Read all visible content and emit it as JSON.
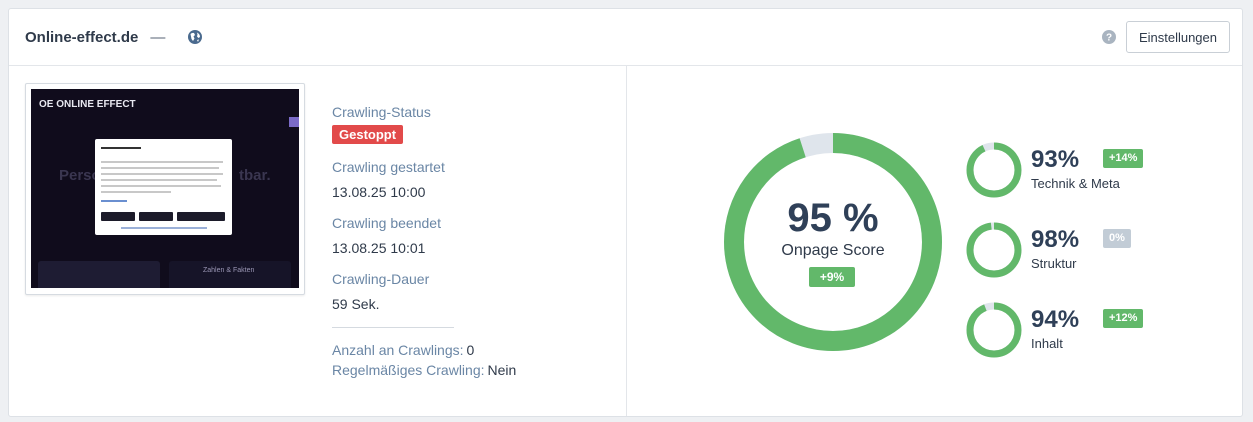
{
  "header": {
    "site_title": "Online-effect.de",
    "dash": "—",
    "settings_label": "Einstellungen"
  },
  "thumbnail": {
    "logo_text": "OE ONLINE EFFECT",
    "hero_left": "Perso",
    "hero_right": "tbar.",
    "panel_text": "Zahlen & Fakten"
  },
  "crawl": {
    "status_label": "Crawling-Status",
    "status_value": "Gestoppt",
    "started_label": "Crawling gestartet",
    "started_value": "13.08.25 10:00",
    "ended_label": "Crawling beendet",
    "ended_value": "13.08.25 10:01",
    "duration_label": "Crawling-Dauer",
    "duration_value": "59 Sek.",
    "count_label": "Anzahl an Crawlings:",
    "count_value": "0",
    "regular_label": "Regelmäßiges Crawling:",
    "regular_value": "Nein"
  },
  "score": {
    "value": 95,
    "display": "95 %",
    "label": "Onpage Score",
    "change": "+9%"
  },
  "subscores": [
    {
      "value": 93,
      "display": "93%",
      "name": "Technik & Meta",
      "change": "+14%",
      "change_type": "positive"
    },
    {
      "value": 98,
      "display": "98%",
      "name": "Struktur",
      "change": "0%",
      "change_type": "neutral"
    },
    {
      "value": 94,
      "display": "94%",
      "name": "Inhalt",
      "change": "+12%",
      "change_type": "positive"
    }
  ],
  "colors": {
    "ring_fill": "#62b86a",
    "ring_track": "#dfe5ec",
    "positive_badge": "#62b86a",
    "neutral_badge": "#c2ccd6",
    "stopped_badge": "#e24a4a"
  },
  "icons": {
    "globe": "globe-icon",
    "help": "help-circle-icon"
  }
}
